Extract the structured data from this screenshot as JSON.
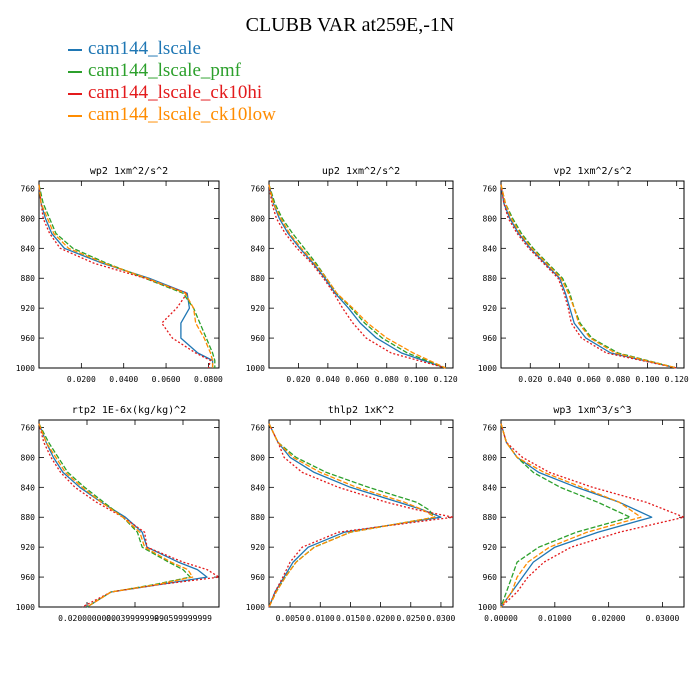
{
  "title": "CLUBB VAR at259E,-1N",
  "legend": [
    {
      "name": "cam144_lscale",
      "color": "#1f77b4"
    },
    {
      "name": "cam144_lscale_pmf",
      "color": "#2ca02c"
    },
    {
      "name": "cam144_lscale_ck10hi",
      "color": "#e31a1c"
    },
    {
      "name": "cam144_lscale_ck10low",
      "color": "#ff8c00"
    }
  ],
  "chart_data": [
    {
      "type": "line",
      "title": "wp2  1xm^2/s^2",
      "ylim": [
        1000,
        750
      ],
      "yticks": [
        "760",
        "800",
        "840",
        "880",
        "920",
        "960",
        "1000"
      ],
      "xlim": [
        0,
        0.085
      ],
      "xticks": [
        0.02,
        0.04,
        0.06,
        0.08
      ],
      "xticklabels": [
        "0.0200",
        "0.0400",
        "0.0600",
        "0.0800"
      ],
      "y": [
        755,
        780,
        800,
        820,
        840,
        860,
        880,
        900,
        920,
        940,
        960,
        980,
        990,
        1000
      ],
      "series": [
        {
          "name": "cam144_lscale",
          "values": [
            0.0,
            0.001,
            0.003,
            0.006,
            0.012,
            0.03,
            0.052,
            0.07,
            0.071,
            0.067,
            0.067,
            0.075,
            0.082,
            0.082
          ]
        },
        {
          "name": "cam144_lscale_pmf",
          "values": [
            0.0,
            0.002,
            0.005,
            0.008,
            0.016,
            0.032,
            0.05,
            0.068,
            0.073,
            0.076,
            0.079,
            0.082,
            0.083,
            0.083
          ]
        },
        {
          "name": "cam144_lscale_ck10hi",
          "values": [
            0.0,
            0.001,
            0.002,
            0.005,
            0.01,
            0.026,
            0.05,
            0.07,
            0.065,
            0.058,
            0.063,
            0.074,
            0.081,
            0.08
          ]
        },
        {
          "name": "cam144_lscale_ck10low",
          "values": [
            0.0,
            0.001,
            0.004,
            0.007,
            0.014,
            0.031,
            0.051,
            0.069,
            0.073,
            0.074,
            0.078,
            0.081,
            0.082,
            0.082
          ]
        }
      ]
    },
    {
      "type": "line",
      "title": "up2  1xm^2/s^2",
      "ylim": [
        1000,
        750
      ],
      "yticks": [
        "760",
        "800",
        "840",
        "880",
        "920",
        "960",
        "1000"
      ],
      "xlim": [
        0,
        0.125
      ],
      "xticks": [
        0.02,
        0.04,
        0.06,
        0.08,
        0.1,
        0.12
      ],
      "xticklabels": [
        "0.020",
        "0.040",
        "0.060",
        "0.080",
        "0.100",
        "0.120"
      ],
      "y": [
        755,
        780,
        800,
        820,
        840,
        860,
        880,
        900,
        920,
        940,
        960,
        980,
        1000
      ],
      "series": [
        {
          "name": "cam144_lscale",
          "values": [
            0.0,
            0.003,
            0.007,
            0.013,
            0.021,
            0.03,
            0.038,
            0.045,
            0.054,
            0.062,
            0.073,
            0.09,
            0.12
          ]
        },
        {
          "name": "cam144_lscale_pmf",
          "values": [
            0.0,
            0.004,
            0.009,
            0.016,
            0.024,
            0.032,
            0.039,
            0.046,
            0.056,
            0.065,
            0.077,
            0.094,
            0.12
          ]
        },
        {
          "name": "cam144_lscale_ck10hi",
          "values": [
            0.0,
            0.002,
            0.005,
            0.011,
            0.019,
            0.029,
            0.037,
            0.044,
            0.05,
            0.057,
            0.066,
            0.083,
            0.12
          ]
        },
        {
          "name": "cam144_lscale_ck10low",
          "values": [
            0.0,
            0.003,
            0.008,
            0.014,
            0.022,
            0.031,
            0.039,
            0.046,
            0.057,
            0.067,
            0.08,
            0.098,
            0.12
          ]
        }
      ]
    },
    {
      "type": "line",
      "title": "vp2  1xm^2/s^2",
      "ylim": [
        1000,
        750
      ],
      "yticks": [
        "760",
        "800",
        "840",
        "880",
        "920",
        "960",
        "1000"
      ],
      "xlim": [
        0,
        0.125
      ],
      "xticks": [
        0.02,
        0.04,
        0.06,
        0.08,
        0.1,
        0.12
      ],
      "xticklabels": [
        "0.020",
        "0.040",
        "0.060",
        "0.080",
        "0.100",
        "0.120"
      ],
      "y": [
        755,
        780,
        800,
        820,
        840,
        860,
        880,
        900,
        920,
        940,
        960,
        980,
        1000
      ],
      "series": [
        {
          "name": "cam144_lscale",
          "values": [
            0.0,
            0.002,
            0.006,
            0.012,
            0.02,
            0.03,
            0.04,
            0.044,
            0.047,
            0.05,
            0.058,
            0.075,
            0.12
          ]
        },
        {
          "name": "cam144_lscale_pmf",
          "values": [
            0.0,
            0.003,
            0.008,
            0.014,
            0.022,
            0.032,
            0.042,
            0.047,
            0.05,
            0.054,
            0.062,
            0.08,
            0.12
          ]
        },
        {
          "name": "cam144_lscale_ck10hi",
          "values": [
            0.0,
            0.002,
            0.005,
            0.011,
            0.019,
            0.029,
            0.039,
            0.043,
            0.046,
            0.048,
            0.055,
            0.072,
            0.12
          ]
        },
        {
          "name": "cam144_lscale_ck10low",
          "values": [
            0.0,
            0.003,
            0.007,
            0.013,
            0.021,
            0.031,
            0.041,
            0.046,
            0.05,
            0.053,
            0.061,
            0.078,
            0.12
          ]
        }
      ]
    },
    {
      "type": "line",
      "title": "rtp2  1E-6x(kg/kg)^2",
      "ylim": [
        1000,
        750
      ],
      "yticks": [
        "760",
        "800",
        "840",
        "880",
        "920",
        "960",
        "1000"
      ],
      "xlim": [
        0,
        0.075
      ],
      "xticks": [
        0.02,
        0.04,
        0.06
      ],
      "xticklabels": [
        "0.0200000000",
        "0.0399999999",
        "0.0599999999"
      ],
      "y": [
        755,
        780,
        800,
        820,
        840,
        860,
        880,
        900,
        920,
        940,
        950,
        960,
        970,
        980,
        1000
      ],
      "series": [
        {
          "name": "cam144_lscale",
          "values": [
            0.0,
            0.003,
            0.006,
            0.01,
            0.017,
            0.026,
            0.036,
            0.043,
            0.045,
            0.058,
            0.066,
            0.07,
            0.05,
            0.03,
            0.02
          ]
        },
        {
          "name": "cam144_lscale_pmf",
          "values": [
            0.0,
            0.004,
            0.008,
            0.012,
            0.019,
            0.027,
            0.035,
            0.041,
            0.043,
            0.054,
            0.06,
            0.063,
            0.048,
            0.03,
            0.02
          ]
        },
        {
          "name": "cam144_lscale_ck10hi",
          "values": [
            0.0,
            0.002,
            0.005,
            0.009,
            0.015,
            0.024,
            0.035,
            0.044,
            0.045,
            0.06,
            0.07,
            0.075,
            0.05,
            0.03,
            0.018
          ]
        },
        {
          "name": "cam144_lscale_ck10low",
          "values": [
            0.0,
            0.003,
            0.007,
            0.011,
            0.018,
            0.026,
            0.035,
            0.042,
            0.044,
            0.055,
            0.062,
            0.064,
            0.049,
            0.03,
            0.02
          ]
        }
      ]
    },
    {
      "type": "line",
      "title": "thlp2  1xK^2",
      "ylim": [
        1000,
        750
      ],
      "yticks": [
        "760",
        "800",
        "840",
        "880",
        "920",
        "960",
        "1000"
      ],
      "xlim": [
        0.0015,
        0.032
      ],
      "xticks": [
        0.005,
        0.01,
        0.015,
        0.02,
        0.025,
        0.03
      ],
      "xticklabels": [
        "0.0050",
        "0.0100",
        "0.0150",
        "0.0200",
        "0.0250",
        "0.0300"
      ],
      "y": [
        755,
        780,
        800,
        820,
        840,
        860,
        870,
        880,
        900,
        920,
        940,
        960,
        980,
        1000
      ],
      "series": [
        {
          "name": "cam144_lscale",
          "values": [
            0.0015,
            0.003,
            0.005,
            0.009,
            0.015,
            0.023,
            0.027,
            0.03,
            0.014,
            0.008,
            0.0055,
            0.004,
            0.0025,
            0.0015
          ]
        },
        {
          "name": "cam144_lscale_pmf",
          "values": [
            0.0015,
            0.003,
            0.006,
            0.011,
            0.018,
            0.026,
            0.028,
            0.029,
            0.015,
            0.009,
            0.006,
            0.0042,
            0.0027,
            0.0015
          ]
        },
        {
          "name": "cam144_lscale_ck10hi",
          "values": [
            0.0015,
            0.003,
            0.004,
            0.007,
            0.013,
            0.021,
            0.026,
            0.032,
            0.013,
            0.007,
            0.005,
            0.0038,
            0.0025,
            0.0015
          ]
        },
        {
          "name": "cam144_lscale_ck10low",
          "values": [
            0.0015,
            0.003,
            0.0055,
            0.01,
            0.016,
            0.024,
            0.027,
            0.029,
            0.015,
            0.009,
            0.006,
            0.0042,
            0.0027,
            0.0015
          ]
        }
      ]
    },
    {
      "type": "line",
      "title": "wp3  1xm^3/s^3",
      "ylim": [
        1000,
        750
      ],
      "yticks": [
        "760",
        "800",
        "840",
        "880",
        "920",
        "960",
        "1000"
      ],
      "xlim": [
        0,
        0.034
      ],
      "xticks": [
        0.0,
        0.01,
        0.02,
        0.03
      ],
      "xticklabels": [
        "0.00000",
        "0.01000",
        "0.02000",
        "0.03000"
      ],
      "y": [
        755,
        780,
        800,
        820,
        840,
        860,
        880,
        900,
        920,
        940,
        960,
        980,
        1000
      ],
      "series": [
        {
          "name": "cam144_lscale",
          "values": [
            0.0,
            0.001,
            0.003,
            0.007,
            0.014,
            0.022,
            0.028,
            0.018,
            0.01,
            0.006,
            0.004,
            0.002,
            0.0
          ]
        },
        {
          "name": "cam144_lscale_pmf",
          "values": [
            0.0,
            0.001,
            0.003,
            0.006,
            0.011,
            0.018,
            0.024,
            0.014,
            0.007,
            0.003,
            0.002,
            0.001,
            0.0
          ]
        },
        {
          "name": "cam144_lscale_ck10hi",
          "values": [
            0.0,
            0.001,
            0.004,
            0.009,
            0.017,
            0.027,
            0.034,
            0.022,
            0.013,
            0.008,
            0.005,
            0.003,
            0.0
          ]
        },
        {
          "name": "cam144_lscale_ck10low",
          "values": [
            0.0,
            0.001,
            0.003,
            0.008,
            0.015,
            0.022,
            0.026,
            0.016,
            0.009,
            0.005,
            0.003,
            0.002,
            0.0
          ]
        }
      ]
    }
  ]
}
